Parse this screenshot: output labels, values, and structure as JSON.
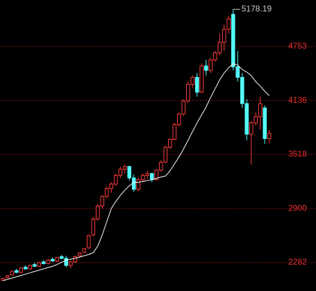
{
  "chart_data": {
    "type": "candlestick",
    "categories": [
      null,
      null,
      null,
      null,
      null,
      null,
      null,
      null,
      null,
      null,
      null,
      null,
      null,
      null,
      null,
      null,
      null,
      null,
      null,
      null,
      null,
      null,
      null,
      null,
      null,
      null,
      null,
      null,
      null,
      null,
      null,
      null,
      null,
      null,
      null,
      null,
      null,
      null,
      null,
      null,
      null,
      null,
      null,
      null,
      null,
      null,
      null,
      null,
      null,
      null,
      null,
      null,
      null,
      null,
      null,
      null,
      null,
      null,
      null,
      null
    ],
    "open": [
      2080,
      2110,
      2140,
      2190,
      2170,
      2230,
      2210,
      2260,
      2240,
      2290,
      2270,
      2320,
      2300,
      2350,
      2330,
      2250,
      2290,
      2360,
      2400,
      2450,
      2600,
      2780,
      2930,
      3040,
      3130,
      3180,
      3280,
      3350,
      3380,
      3250,
      3120,
      3230,
      3280,
      3300,
      3230,
      3340,
      3430,
      3600,
      3690,
      3860,
      3980,
      4130,
      4320,
      4400,
      4230,
      4530,
      4480,
      4600,
      4680,
      4800,
      4950,
      5120,
      4520,
      4400,
      4100,
      3750,
      3880,
      3950,
      4050,
      3700
    ],
    "high": [
      2110,
      2140,
      2190,
      2210,
      2230,
      2250,
      2260,
      2280,
      2290,
      2310,
      2320,
      2340,
      2350,
      2370,
      2360,
      2300,
      2360,
      2400,
      2450,
      2600,
      2800,
      2950,
      3050,
      3150,
      3200,
      3300,
      3380,
      3400,
      3390,
      3290,
      3250,
      3300,
      3330,
      3310,
      3350,
      3450,
      3620,
      3700,
      3880,
      4000,
      4150,
      4350,
      4420,
      4450,
      4560,
      4600,
      4620,
      4700,
      4900,
      5000,
      5100,
      5178.19,
      4700,
      4450,
      4150,
      3900,
      4000,
      4180,
      4080,
      3800
    ],
    "low": [
      2070,
      2100,
      2130,
      2160,
      2160,
      2200,
      2200,
      2230,
      2230,
      2260,
      2260,
      2290,
      2290,
      2320,
      2230,
      2220,
      2280,
      2340,
      2390,
      2440,
      2580,
      2760,
      2900,
      3020,
      3080,
      3160,
      3250,
      3300,
      3220,
      3090,
      3100,
      3200,
      3240,
      3200,
      3220,
      3320,
      3420,
      3580,
      3680,
      3840,
      3960,
      4110,
      4280,
      4180,
      4220,
      4420,
      4450,
      4580,
      4650,
      4700,
      4900,
      4480,
      4350,
      4050,
      3680,
      3400,
      3850,
      3800,
      3640,
      3650
    ],
    "close": [
      2100,
      2130,
      2180,
      2170,
      2220,
      2210,
      2250,
      2240,
      2280,
      2270,
      2310,
      2300,
      2340,
      2330,
      2250,
      2290,
      2350,
      2390,
      2440,
      2590,
      2780,
      2930,
      3040,
      3130,
      3180,
      3280,
      3350,
      3380,
      3250,
      3120,
      3230,
      3280,
      3300,
      3230,
      3340,
      3430,
      3600,
      3690,
      3860,
      3980,
      4130,
      4320,
      4400,
      4230,
      4530,
      4480,
      4600,
      4680,
      4800,
      4950,
      5070,
      4520,
      4400,
      4100,
      3750,
      3880,
      3950,
      4100,
      3700,
      3760
    ],
    "ma": {
      "color": "#ffffff",
      "values": [
        2075,
        2090,
        2105,
        2120,
        2135,
        2150,
        2165,
        2180,
        2195,
        2210,
        2225,
        2240,
        2260,
        2285,
        2310,
        2320,
        2330,
        2345,
        2360,
        2375,
        2395,
        2470,
        2600,
        2750,
        2900,
        2980,
        3050,
        3110,
        3160,
        3200,
        3200,
        3210,
        3220,
        3230,
        3245,
        3260,
        3270,
        3330,
        3410,
        3490,
        3580,
        3680,
        3780,
        3880,
        3970,
        4060,
        4170,
        4270,
        4370,
        4450,
        4510,
        4555,
        4540,
        4490,
        4460,
        4420,
        4350,
        4300,
        4240,
        4190
      ]
    },
    "up_color": "#ff3c3c",
    "down_color": "#54fcfc",
    "ylim": [
      1957,
      5284
    ],
    "yticks": [
      2282,
      2900,
      3518,
      4136,
      4753
    ],
    "grid": true,
    "grid_color": "#8c1010",
    "tick_color": "#e83030",
    "annotation_color": "#c8c8c8"
  }
}
